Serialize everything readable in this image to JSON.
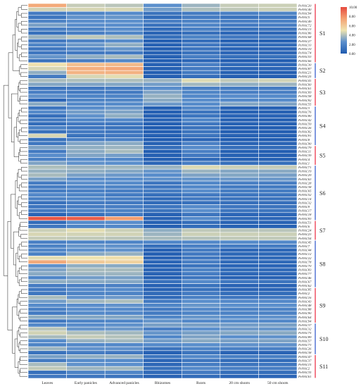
{
  "chart_data": {
    "type": "heatmap",
    "title": "",
    "columns": [
      "Leaves",
      "Early panicles",
      "Advanced panicles",
      "Rhizomes",
      "Roots",
      "20 cm shoots",
      "50 cm shoots"
    ],
    "rows": [
      "PeNAC20",
      "PeNAC40",
      "PeNAC94",
      "PeNAC5",
      "PeNAC49",
      "PeNAC72",
      "PeNAC13",
      "PeNAC86",
      "PeNAC68",
      "PeNAC27",
      "PeNAC33",
      "PeNAC10",
      "PeNAC74",
      "PeNAC53",
      "PeNAC66",
      "PeNAC30",
      "PeNAC87",
      "PeNAC21",
      "PeNAC25",
      "PeNAC41",
      "PeNAC60",
      "PeNAC61",
      "PeNAC69",
      "PeNAC58",
      "PeNAC92",
      "PeNAC55",
      "PeNAC3",
      "PeNAC76",
      "PeNAC80",
      "PeNAC42",
      "PeNAC59",
      "PeNAC26",
      "PeNAC82",
      "PeNAC91",
      "PeNAC8",
      "PeNAC90",
      "PeNAC79",
      "PeNAC11",
      "PeNAC39",
      "PeNAC4",
      "PeNAC1",
      "PeNAC71",
      "PeNAC19",
      "PeNAC29",
      "PeNAC63",
      "PeNAC28",
      "PeNAC38",
      "PeNAC65",
      "PeNAC52",
      "PeNAC14",
      "PeNAC32",
      "PeNAC9",
      "PeNAC17",
      "PeNAC18",
      "PeNAC93",
      "PeNAC51",
      "PeNAC6",
      "PeNAC24",
      "PeNAC23",
      "PeNAC54",
      "PeNAC45",
      "PeNAC7",
      "PeNAC44",
      "PeNAC12",
      "PeNAC22",
      "PeNAC78",
      "PeNAC70",
      "PeNAC83",
      "PeNAC77",
      "PeNAC46",
      "PeNAC67",
      "PeNAC62",
      "PeNAC85",
      "PeNAC2",
      "PeNAC16",
      "PeNAC43",
      "PeNAC48",
      "PeNAC88",
      "PeNAC90",
      "PeNAC64",
      "PeNAC94",
      "PeNAC37",
      "PeNAC32",
      "PeNAC75",
      "PeNAC89",
      "PeNAC57",
      "PeNAC73",
      "PeNAC26",
      "PeNAC38",
      "PeNAC47",
      "PeNAC37",
      "PeNAC15",
      "PeNAC2",
      "PeNAC35",
      "PeNAC61"
    ],
    "values": [
      [
        7.2,
        4.3,
        4.1,
        2.5,
        3.6,
        4.3,
        4.4
      ],
      [
        4.5,
        4.6,
        4.6,
        2.9,
        3.9,
        4.2,
        4.4
      ],
      [
        1.6,
        2.0,
        2.3,
        1.2,
        1.6,
        1.8,
        2.0
      ],
      [
        1.3,
        2.6,
        2.7,
        0.8,
        1.6,
        1.2,
        1.4
      ],
      [
        1.9,
        2.4,
        2.5,
        1.7,
        1.9,
        1.7,
        1.8
      ],
      [
        3.0,
        2.4,
        2.4,
        1.1,
        2.0,
        1.5,
        1.7
      ],
      [
        1.8,
        2.0,
        2.4,
        0.8,
        1.8,
        1.1,
        1.2
      ],
      [
        1.0,
        1.7,
        2.0,
        0.4,
        0.9,
        0.5,
        0.5
      ],
      [
        3.6,
        4.2,
        3.9,
        1.0,
        2.0,
        1.5,
        1.6
      ],
      [
        1.4,
        1.9,
        2.3,
        0.2,
        0.9,
        0.3,
        0.3
      ],
      [
        2.0,
        2.8,
        3.4,
        0.3,
        1.4,
        0.8,
        0.8
      ],
      [
        1.4,
        2.1,
        2.7,
        0.3,
        1.3,
        0.5,
        0.5
      ],
      [
        1.3,
        1.4,
        1.5,
        0.3,
        1.1,
        0.5,
        0.5
      ],
      [
        2.7,
        3.4,
        3.8,
        0.3,
        1.7,
        1.0,
        1.1
      ],
      [
        1.2,
        1.7,
        2.2,
        0.2,
        0.6,
        0.2,
        0.2
      ],
      [
        5.1,
        6.4,
        6.6,
        0.3,
        1.7,
        0.7,
        0.6
      ],
      [
        4.6,
        7.0,
        7.3,
        0.3,
        1.5,
        0.5,
        0.5
      ],
      [
        3.4,
        6.8,
        6.9,
        0.2,
        1.5,
        0.3,
        0.2
      ],
      [
        1.5,
        4.6,
        4.8,
        0.2,
        0.9,
        0.2,
        0.2
      ],
      [
        3.8,
        3.9,
        3.9,
        3.6,
        4.7,
        4.2,
        4.5
      ],
      [
        3.2,
        3.1,
        3.2,
        2.9,
        3.7,
        3.4,
        3.6
      ],
      [
        1.2,
        1.4,
        1.6,
        2.4,
        1.8,
        1.6,
        1.6
      ],
      [
        1.7,
        1.5,
        1.5,
        3.1,
        2.0,
        1.7,
        1.7
      ],
      [
        2.6,
        2.0,
        2.0,
        3.5,
        2.2,
        2.4,
        2.3
      ],
      [
        0.5,
        1.9,
        2.0,
        3.3,
        2.4,
        2.2,
        2.3
      ],
      [
        3.3,
        2.2,
        2.3,
        2.8,
        2.3,
        3.2,
        3.1
      ],
      [
        1.3,
        2.4,
        2.7,
        0.3,
        2.2,
        0.4,
        0.4
      ],
      [
        2.2,
        2.9,
        3.1,
        0.2,
        1.2,
        0.3,
        0.3
      ],
      [
        1.0,
        2.6,
        3.4,
        0.3,
        1.3,
        0.5,
        0.5
      ],
      [
        1.5,
        2.1,
        2.2,
        0.5,
        2.1,
        0.4,
        0.3
      ],
      [
        0.8,
        1.4,
        1.3,
        0.2,
        1.3,
        0.3,
        0.3
      ],
      [
        1.9,
        1.4,
        1.2,
        0.1,
        1.2,
        0.2,
        0.2
      ],
      [
        1.0,
        1.5,
        1.3,
        0.2,
        1.2,
        0.2,
        0.2
      ],
      [
        4.6,
        1.1,
        1.4,
        0.2,
        1.2,
        0.3,
        0.3
      ],
      [
        1.1,
        1.8,
        1.8,
        0.1,
        0.5,
        0.1,
        0.1
      ],
      [
        1.3,
        3.1,
        3.3,
        0.3,
        1.8,
        0.4,
        0.4
      ],
      [
        3.1,
        3.4,
        3.6,
        0.9,
        2.3,
        0.9,
        0.8
      ],
      [
        1.5,
        3.3,
        3.8,
        0.2,
        1.8,
        0.3,
        0.2
      ],
      [
        2.4,
        3.1,
        2.9,
        0.2,
        1.4,
        0.3,
        0.2
      ],
      [
        1.8,
        2.3,
        2.1,
        0.2,
        0.7,
        0.3,
        0.3
      ],
      [
        3.1,
        2.6,
        2.5,
        0.6,
        1.7,
        1.0,
        1.0
      ],
      [
        3.9,
        3.6,
        3.7,
        3.6,
        4.7,
        4.4,
        4.3
      ],
      [
        3.5,
        3.4,
        3.2,
        2.7,
        3.6,
        3.2,
        3.3
      ],
      [
        3.8,
        3.0,
        2.8,
        2.4,
        3.1,
        3.2,
        3.0
      ],
      [
        3.0,
        2.5,
        2.5,
        2.6,
        2.7,
        2.8,
        2.8
      ],
      [
        1.6,
        2.5,
        2.3,
        1.3,
        2.1,
        1.8,
        1.7
      ],
      [
        1.7,
        2.1,
        2.0,
        1.4,
        2.2,
        1.6,
        1.6
      ],
      [
        1.6,
        1.8,
        1.7,
        1.6,
        2.4,
        1.6,
        1.6
      ],
      [
        2.2,
        2.0,
        1.6,
        1.0,
        1.5,
        1.3,
        1.3
      ],
      [
        1.9,
        2.1,
        1.8,
        0.8,
        1.5,
        1.2,
        1.2
      ],
      [
        1.0,
        1.5,
        1.4,
        0.7,
        1.0,
        0.9,
        0.9
      ],
      [
        1.3,
        1.7,
        1.7,
        1.3,
        2.3,
        1.3,
        1.2
      ],
      [
        1.5,
        2.0,
        1.9,
        1.2,
        2.5,
        1.3,
        1.3
      ],
      [
        0.4,
        1.0,
        1.5,
        0.3,
        1.2,
        0.5,
        0.5
      ],
      [
        9.6,
        9.4,
        7.6,
        0.4,
        2.3,
        0.8,
        0.6
      ],
      [
        0.8,
        2.3,
        2.4,
        0.3,
        0.9,
        0.4,
        0.4
      ],
      [
        1.3,
        1.9,
        2.1,
        0.2,
        0.8,
        0.3,
        0.3
      ],
      [
        4.4,
        4.8,
        4.4,
        3.4,
        4.2,
        4.1,
        4.1
      ],
      [
        4.6,
        4.5,
        4.5,
        3.6,
        4.4,
        4.4,
        4.4
      ],
      [
        4.3,
        4.2,
        4.1,
        3.8,
        4.0,
        4.2,
        4.2
      ],
      [
        1.8,
        2.0,
        2.0,
        2.1,
        2.2,
        2.3,
        2.2
      ],
      [
        1.9,
        2.7,
        2.6,
        1.0,
        1.8,
        1.6,
        1.6
      ],
      [
        2.1,
        2.5,
        2.6,
        0.3,
        1.6,
        0.6,
        0.6
      ],
      [
        1.9,
        3.3,
        3.5,
        0.3,
        1.5,
        0.7,
        0.7
      ],
      [
        4.8,
        5.0,
        5.2,
        0.4,
        1.4,
        0.7,
        0.7
      ],
      [
        7.2,
        6.0,
        5.7,
        0.5,
        1.7,
        0.7,
        0.7
      ],
      [
        2.6,
        3.4,
        3.3,
        0.3,
        1.2,
        0.5,
        0.5
      ],
      [
        3.1,
        3.8,
        3.8,
        0.5,
        1.9,
        0.8,
        0.7
      ],
      [
        3.3,
        3.6,
        3.6,
        0.4,
        1.6,
        0.6,
        0.6
      ],
      [
        2.1,
        2.9,
        3.0,
        0.3,
        1.3,
        0.4,
        0.4
      ],
      [
        3.4,
        3.3,
        3.2,
        1.0,
        2.2,
        1.3,
        1.2
      ],
      [
        1.6,
        1.8,
        1.8,
        0.3,
        1.1,
        0.4,
        0.4
      ],
      [
        1.5,
        2.2,
        2.3,
        0.4,
        1.1,
        0.5,
        0.5
      ],
      [
        1.3,
        1.9,
        1.9,
        0.7,
        1.5,
        0.8,
        0.8
      ],
      [
        3.8,
        2.6,
        2.8,
        0.7,
        1.8,
        1.3,
        1.4
      ],
      [
        2.9,
        3.7,
        3.9,
        1.5,
        2.5,
        2.2,
        2.2
      ],
      [
        2.3,
        2.4,
        2.6,
        2.0,
        2.7,
        2.5,
        2.5
      ],
      [
        1.8,
        2.4,
        2.3,
        1.5,
        2.2,
        1.9,
        1.9
      ],
      [
        1.6,
        2.3,
        2.2,
        1.6,
        2.0,
        1.9,
        1.9
      ],
      [
        3.4,
        3.2,
        3.2,
        2.0,
        2.7,
        2.4,
        2.6
      ],
      [
        1.4,
        2.0,
        2.1,
        2.7,
        2.2,
        2.3,
        2.2
      ],
      [
        2.2,
        2.4,
        2.6,
        3.0,
        3.0,
        2.9,
        3.0
      ],
      [
        4.1,
        2.7,
        2.8,
        1.7,
        2.5,
        2.8,
        2.7
      ],
      [
        4.5,
        3.9,
        3.7,
        2.7,
        3.0,
        3.2,
        3.3
      ],
      [
        3.8,
        4.3,
        4.0,
        2.1,
        3.1,
        2.5,
        2.6
      ],
      [
        2.3,
        3.5,
        3.7,
        2.9,
        3.3,
        3.0,
        3.1
      ],
      [
        2.0,
        2.2,
        2.2,
        2.3,
        2.5,
        2.6,
        2.6
      ],
      [
        3.6,
        2.6,
        2.6,
        1.2,
        2.0,
        1.8,
        1.8
      ],
      [
        1.1,
        1.6,
        1.4,
        0.3,
        1.2,
        0.4,
        0.4
      ],
      [
        3.0,
        3.4,
        3.5,
        1.3,
        2.2,
        1.8,
        1.8
      ],
      [
        1.5,
        2.3,
        2.3,
        0.5,
        1.3,
        0.8,
        0.8
      ],
      [
        3.8,
        2.6,
        2.5,
        0.6,
        1.6,
        1.2,
        1.3
      ],
      [
        4.2,
        3.6,
        3.7,
        1.1,
        2.2,
        1.8,
        1.7
      ],
      [
        1.0,
        1.9,
        2.0,
        0.7,
        1.5,
        0.9,
        0.9
      ],
      [
        1.4,
        1.3,
        1.2,
        0.4,
        0.8,
        0.5,
        0.5
      ]
    ],
    "subfamilies": [
      {
        "name": "S1",
        "start": 0,
        "end": 14
      },
      {
        "name": "S2",
        "start": 15,
        "end": 18
      },
      {
        "name": "S3",
        "start": 19,
        "end": 25
      },
      {
        "name": "S4",
        "start": 26,
        "end": 35
      },
      {
        "name": "S5",
        "start": 36,
        "end": 40
      },
      {
        "name": "S6",
        "start": 41,
        "end": 54
      },
      {
        "name": "S7",
        "start": 55,
        "end": 59
      },
      {
        "name": "S8",
        "start": 60,
        "end": 71
      },
      {
        "name": "S9",
        "start": 72,
        "end": 80
      },
      {
        "name": "S10",
        "start": 81,
        "end": 88
      },
      {
        "name": "S11",
        "start": 89,
        "end": 94
      }
    ],
    "colorbar": {
      "ticks": [
        "0.00",
        "2.00",
        "4.00",
        "6.00",
        "8.00",
        "10.00"
      ],
      "range": [
        0,
        10
      ],
      "colors": [
        "#1f5bb0",
        "#5b8fcc",
        "#efe4b0",
        "#f4a273",
        "#e64a3e"
      ]
    },
    "subfamily_colors": [
      "#e8243c",
      "#2a52c8"
    ]
  }
}
